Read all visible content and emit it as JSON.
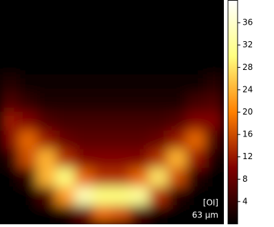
{
  "chart_data": {
    "type": "heatmap",
    "colormap": "afmhot",
    "zlim": [
      0,
      40
    ],
    "zticks": [
      4,
      8,
      12,
      16,
      20,
      24,
      28,
      32,
      36
    ],
    "annotations": [
      "[OI]",
      "63 µm"
    ],
    "values": [
      [
        0,
        0,
        0,
        0,
        0,
        0,
        0,
        0,
        0,
        0,
        0,
        0
      ],
      [
        0,
        0,
        0,
        0,
        0,
        0,
        0,
        0,
        0,
        0,
        0,
        0
      ],
      [
        0,
        0,
        0,
        0,
        0,
        0,
        0,
        0,
        0,
        0,
        0,
        0
      ],
      [
        0,
        0,
        0,
        0,
        0,
        0,
        0,
        0,
        0,
        0,
        0,
        0
      ],
      [
        3,
        1,
        1,
        1,
        1,
        1,
        1,
        1,
        1,
        1,
        1,
        3
      ],
      [
        6,
        4,
        2,
        2,
        2,
        2,
        2,
        2,
        2,
        2,
        5,
        6
      ],
      [
        12,
        10,
        6,
        5,
        5,
        5,
        5,
        5,
        5,
        6,
        10,
        10
      ],
      [
        10,
        18,
        12,
        8,
        7,
        7,
        7,
        7,
        8,
        12,
        18,
        6
      ],
      [
        3,
        16,
        24,
        14,
        10,
        10,
        10,
        10,
        14,
        24,
        12,
        2
      ],
      [
        0,
        4,
        24,
        30,
        18,
        14,
        14,
        18,
        28,
        16,
        3,
        0
      ],
      [
        0,
        0,
        6,
        22,
        34,
        30,
        30,
        32,
        14,
        3,
        0,
        0
      ],
      [
        0,
        0,
        0,
        2,
        8,
        18,
        16,
        6,
        1,
        0,
        0,
        0
      ]
    ]
  }
}
